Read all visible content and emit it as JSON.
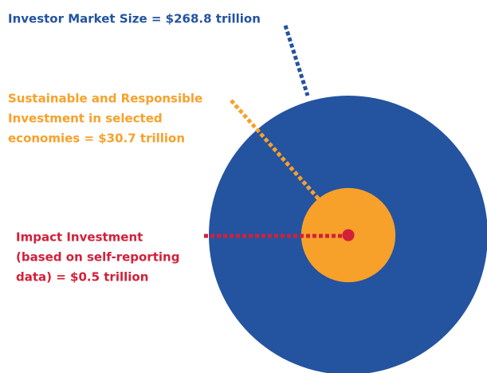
{
  "chart_data": {
    "type": "nested-circles",
    "items": [
      {
        "label_lines": [
          "Investor Market Size = $268.8 trillion"
        ],
        "value": 268.8,
        "color": "#2453a0"
      },
      {
        "label_lines": [
          "Sustainable and Responsible",
          "Investment in selected",
          "economies = $30.7 trillion"
        ],
        "value": 30.7,
        "color": "#f7a12a"
      },
      {
        "label_lines": [
          "Impact Investment",
          "(based on self-reporting",
          "data) = $0.5 trillion"
        ],
        "value": 0.5,
        "color": "#d2213a"
      }
    ]
  }
}
